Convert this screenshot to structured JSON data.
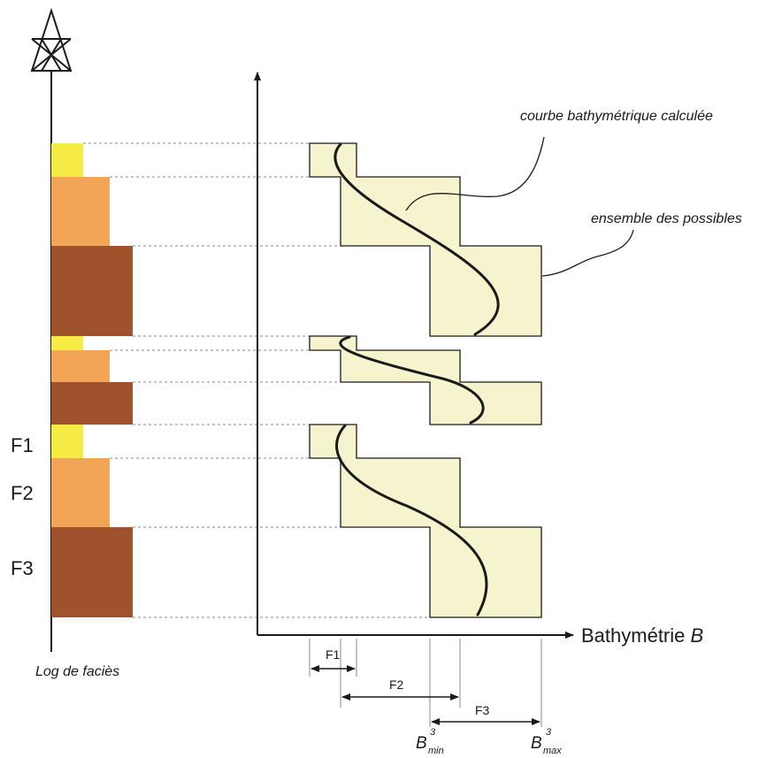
{
  "labels": {
    "curve": "courbe bathymétrique calculée",
    "possibles": "ensemble des possibles",
    "axis_prefix": "Bathymétrie ",
    "axis_var": "B",
    "log": "Log de faciès",
    "f1": "F1",
    "f2": "F2",
    "f3": "F3",
    "range_f1": "F1",
    "range_f2": "F2",
    "range_f3": "F3",
    "bmin_base": "B",
    "bmin_sup": "3",
    "bmin_sub": "min",
    "bmax_base": "B",
    "bmax_sup": "3",
    "bmax_sub": "max"
  },
  "colors": {
    "f1": "#f7ec45",
    "f2": "#f2a457",
    "f3": "#a0522d",
    "envelope_fill": "#f6f4cf",
    "stroke": "#1a1a1a",
    "dash": "#888888"
  }
}
